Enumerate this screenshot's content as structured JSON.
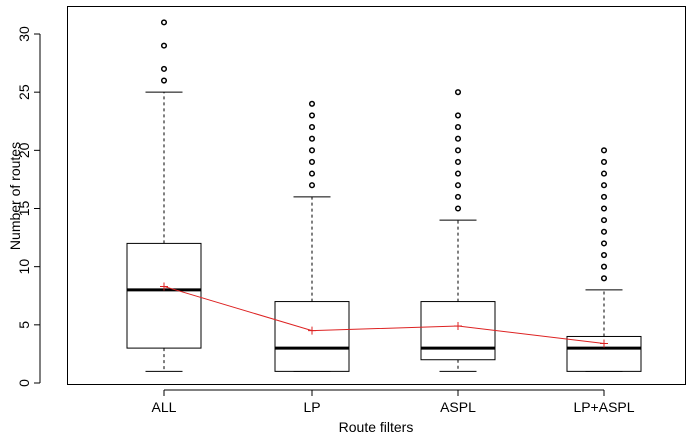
{
  "chart_data": {
    "type": "box",
    "xlabel": "Route filters",
    "ylabel": "Number of routes",
    "categories": [
      "ALL",
      "LP",
      "ASPL",
      "LP+ASPL"
    ],
    "ylim": [
      0,
      32
    ],
    "yticks": [
      0,
      5,
      10,
      15,
      20,
      25,
      30
    ],
    "grid": false,
    "boxes": [
      {
        "category": "ALL",
        "whisker_low": 1,
        "q1": 3,
        "median": 8,
        "q3": 12,
        "whisker_high": 25,
        "outliers": [
          26,
          27,
          29,
          31
        ]
      },
      {
        "category": "LP",
        "whisker_low": 1,
        "q1": 1,
        "median": 3,
        "q3": 7,
        "whisker_high": 16,
        "outliers": [
          17,
          18,
          19,
          20,
          21,
          22,
          23,
          24
        ]
      },
      {
        "category": "ASPL",
        "whisker_low": 1,
        "q1": 2,
        "median": 3,
        "q3": 7,
        "whisker_high": 14,
        "outliers": [
          15,
          16,
          17,
          18,
          19,
          20,
          21,
          22,
          23,
          25
        ]
      },
      {
        "category": "LP+ASPL",
        "whisker_low": 1,
        "q1": 1,
        "median": 3,
        "q3": 4,
        "whisker_high": 8,
        "outliers": [
          9,
          10,
          11,
          12,
          13,
          14,
          15,
          16,
          17,
          18,
          19,
          20
        ]
      }
    ],
    "mean_series": {
      "values": [
        8.3,
        4.5,
        4.9,
        3.4
      ],
      "color": "#dd2222",
      "marker": "plus"
    }
  }
}
